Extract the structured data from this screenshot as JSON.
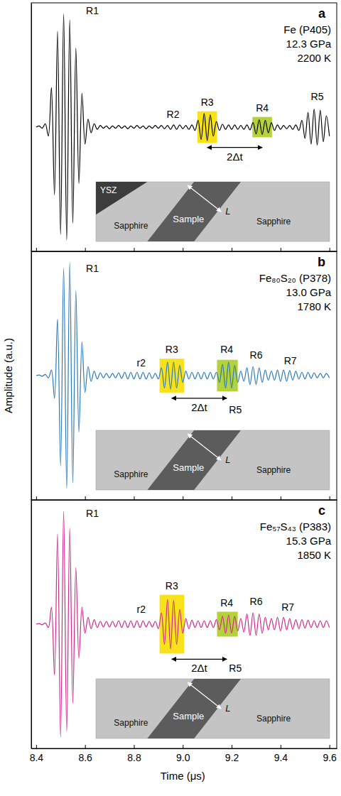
{
  "chart_data": [
    {
      "type": "line",
      "label": "a",
      "title": "Fe (P405)",
      "pressure": "12.3 GPa",
      "temperature": "2200 K",
      "xlim": [
        8.38,
        9.63
      ],
      "ylim": [
        -1.1,
        1.1
      ],
      "xticks": [
        8.4,
        8.6,
        8.8,
        {
          "value": 9,
          "label": "9.0"
        },
        9.2,
        9.4,
        9.6
      ],
      "tick_labels": false,
      "x": [
        8.4,
        8.4125,
        8.425,
        8.4375,
        8.45,
        8.4625,
        8.475,
        8.4875,
        8.5,
        8.5125,
        8.525,
        8.5375,
        8.55,
        8.5625,
        8.575,
        8.5875,
        8.6,
        8.6125,
        8.625,
        8.6375,
        8.65,
        8.6625,
        8.675,
        8.6875,
        8.7,
        8.7125,
        8.725,
        8.7375,
        8.75,
        8.7625,
        8.775,
        8.7875,
        8.8,
        8.8125,
        8.825,
        8.8375,
        8.85,
        8.8625,
        8.875,
        8.8875,
        8.9,
        8.9125,
        8.925,
        8.9375,
        8.95,
        8.9625,
        8.975,
        8.9875,
        9.0,
        9.0125,
        9.025,
        9.0375,
        9.05,
        9.0625,
        9.075,
        9.0875,
        9.1,
        9.1125,
        9.125,
        9.1375,
        9.15,
        9.1625,
        9.175,
        9.1875,
        9.2,
        9.2125,
        9.225,
        9.2375,
        9.25,
        9.2625,
        9.275,
        9.2875,
        9.3,
        9.3125,
        9.325,
        9.3375,
        9.35,
        9.3625,
        9.375,
        9.3875,
        9.4,
        9.4125,
        9.425,
        9.4375,
        9.45,
        9.4625,
        9.475,
        9.4875,
        9.5,
        9.5125,
        9.525,
        9.5375,
        9.55,
        9.5625,
        9.575,
        9.5875,
        9.6
      ],
      "series": [
        {
          "color": "#000000",
          "values": [
            0,
            0.01,
            -0.01,
            0.03,
            -0.08,
            0.35,
            -0.6,
            0.85,
            -0.95,
            1.0,
            -1.0,
            0.95,
            -0.85,
            0.7,
            -0.5,
            0.3,
            -0.15,
            0.07,
            -0.05,
            0.03,
            -0.02,
            0.015,
            -0.01,
            0.01,
            -0.015,
            0.01,
            -0.01,
            0.015,
            -0.01,
            0.01,
            -0.015,
            0.01,
            -0.01,
            0.015,
            -0.01,
            0.01,
            -0.015,
            0.01,
            -0.01,
            0.015,
            -0.01,
            0.015,
            -0.015,
            0.015,
            -0.02,
            0.02,
            -0.02,
            0.02,
            -0.015,
            0.015,
            -0.02,
            0.02,
            -0.03,
            0.06,
            -0.11,
            0.12,
            -0.12,
            0.11,
            -0.08,
            0.05,
            -0.03,
            0.025,
            -0.02,
            0.02,
            -0.02,
            0.02,
            -0.02,
            0.015,
            -0.02,
            0.02,
            -0.025,
            0.04,
            -0.06,
            0.065,
            -0.065,
            0.06,
            -0.05,
            0.04,
            -0.03,
            0.02,
            -0.02,
            0.015,
            -0.015,
            0.015,
            -0.02,
            0.02,
            -0.03,
            0.06,
            -0.1,
            0.13,
            -0.15,
            0.16,
            -0.16,
            0.15,
            -0.13,
            0.1,
            -0.08
          ]
        }
      ],
      "highlights": [
        {
          "x0": 9.06,
          "x1": 9.14,
          "y0": -0.14,
          "y1": 0.14,
          "color": "#f7e21b"
        },
        {
          "x0": 9.285,
          "x1": 9.365,
          "y0": -0.09,
          "y1": 0.09,
          "color": "#b4d23a"
        }
      ],
      "annotations": [
        {
          "text": "R1",
          "x": 8.63,
          "y": 1.0
        },
        {
          "text": "R2",
          "x": 8.96,
          "y": 0.08
        },
        {
          "text": "R3",
          "x": 9.1,
          "y": 0.19
        },
        {
          "text": "R4",
          "x": 9.325,
          "y": 0.14
        },
        {
          "text": "R5",
          "x": 9.55,
          "y": 0.24
        }
      ],
      "arrow": {
        "text": "2Δt",
        "x0": 9.1,
        "x1": 9.325,
        "y": -0.18
      },
      "inset": {
        "top_left": "YSZ",
        "left": "Sapphire",
        "sample": "Sample",
        "right": "Sapphire",
        "thickness": "L"
      }
    },
    {
      "type": "line",
      "label": "b",
      "title": "Fe₈₀S₂₀ (P378)",
      "pressure": "13.0 GPa",
      "temperature": "1780 K",
      "ylabel": "Amplitude (a.u.)",
      "xlim": [
        8.38,
        9.63
      ],
      "ylim": [
        -1.1,
        1.1
      ],
      "xticks": [
        8.4,
        8.6,
        8.8,
        {
          "value": 9,
          "label": "9.0"
        },
        9.2,
        9.4,
        9.6
      ],
      "tick_labels": false,
      "x": [
        8.4,
        8.4125,
        8.425,
        8.4375,
        8.45,
        8.4625,
        8.475,
        8.4875,
        8.5,
        8.5125,
        8.525,
        8.5375,
        8.55,
        8.5625,
        8.575,
        8.5875,
        8.6,
        8.6125,
        8.625,
        8.6375,
        8.65,
        8.6625,
        8.675,
        8.6875,
        8.7,
        8.7125,
        8.725,
        8.7375,
        8.75,
        8.7625,
        8.775,
        8.7875,
        8.8,
        8.8125,
        8.825,
        8.8375,
        8.85,
        8.8625,
        8.875,
        8.8875,
        8.9,
        8.9125,
        8.925,
        8.9375,
        8.95,
        8.9625,
        8.975,
        8.9875,
        9.0,
        9.0125,
        9.025,
        9.0375,
        9.05,
        9.0625,
        9.075,
        9.0875,
        9.1,
        9.1125,
        9.125,
        9.1375,
        9.15,
        9.1625,
        9.175,
        9.1875,
        9.2,
        9.2125,
        9.225,
        9.2375,
        9.25,
        9.2625,
        9.275,
        9.2875,
        9.3,
        9.3125,
        9.325,
        9.3375,
        9.35,
        9.3625,
        9.375,
        9.3875,
        9.4,
        9.4125,
        9.425,
        9.4375,
        9.45,
        9.4625,
        9.475,
        9.4875,
        9.5,
        9.5125,
        9.525,
        9.5375,
        9.55,
        9.5625,
        9.575,
        9.5875,
        9.6
      ],
      "series": [
        {
          "color": "#2a78b8",
          "values": [
            0,
            0.005,
            -0.005,
            0.01,
            -0.02,
            0.05,
            -0.2,
            0.5,
            -0.8,
            0.95,
            -1.0,
            1.0,
            -0.95,
            0.75,
            -0.5,
            0.3,
            -0.15,
            0.08,
            -0.05,
            0.04,
            -0.03,
            0.025,
            -0.02,
            0.02,
            -0.02,
            0.02,
            -0.02,
            0.025,
            -0.025,
            0.03,
            -0.03,
            0.03,
            -0.03,
            0.03,
            -0.03,
            0.03,
            -0.03,
            0.025,
            -0.025,
            0.02,
            -0.03,
            0.07,
            -0.11,
            0.12,
            -0.12,
            0.12,
            -0.11,
            0.09,
            -0.06,
            0.04,
            -0.03,
            0.03,
            -0.03,
            0.03,
            -0.03,
            0.03,
            -0.03,
            0.03,
            -0.03,
            0.03,
            -0.06,
            0.1,
            -0.11,
            0.12,
            -0.11,
            0.09,
            -0.06,
            0.04,
            -0.05,
            0.07,
            -0.08,
            0.08,
            -0.08,
            0.07,
            -0.06,
            0.05,
            -0.04,
            0.04,
            -0.04,
            0.05,
            -0.05,
            0.05,
            -0.05,
            0.045,
            -0.04,
            0.04,
            -0.03,
            0.03,
            -0.03,
            0.03,
            -0.025,
            0.025,
            -0.02,
            0.02,
            -0.02,
            0.02,
            -0.02
          ]
        }
      ],
      "highlights": [
        {
          "x0": 8.905,
          "x1": 9.005,
          "y0": -0.15,
          "y1": 0.15,
          "color": "#f7e21b"
        },
        {
          "x0": 9.14,
          "x1": 9.225,
          "y0": -0.14,
          "y1": 0.14,
          "color": "#b4d23a"
        }
      ],
      "annotations": [
        {
          "text": "R1",
          "x": 8.63,
          "y": 0.92
        },
        {
          "text": "r2",
          "x": 8.83,
          "y": 0.08
        },
        {
          "text": "R3",
          "x": 8.955,
          "y": 0.2
        },
        {
          "text": "R4",
          "x": 9.18,
          "y": 0.2
        },
        {
          "text": "R5",
          "x": 9.215,
          "y": -0.33
        },
        {
          "text": "R6",
          "x": 9.3,
          "y": 0.15
        },
        {
          "text": "R7",
          "x": 9.44,
          "y": 0.1
        }
      ],
      "arrow": {
        "text": "2Δt",
        "x0": 8.955,
        "x1": 9.18,
        "y": -0.2
      },
      "inset": {
        "left": "Sapphire",
        "sample": "Sample",
        "right": "Sapphire",
        "thickness": "L"
      }
    },
    {
      "type": "line",
      "label": "c",
      "title": "Fe₅₇S₄₃ (P383)",
      "pressure": "15.3 GPa",
      "temperature": "1850 K",
      "xlabel": "Time (μs)",
      "xlim": [
        8.38,
        9.63
      ],
      "ylim": [
        -1.1,
        1.1
      ],
      "xticks": [
        8.4,
        8.6,
        8.8,
        {
          "value": 9,
          "label": "9.0"
        },
        9.2,
        9.4,
        9.6
      ],
      "tick_labels": "x",
      "x": [
        8.4,
        8.4125,
        8.425,
        8.4375,
        8.45,
        8.4625,
        8.475,
        8.4875,
        8.5,
        8.5125,
        8.525,
        8.5375,
        8.55,
        8.5625,
        8.575,
        8.5875,
        8.6,
        8.6125,
        8.625,
        8.6375,
        8.65,
        8.6625,
        8.675,
        8.6875,
        8.7,
        8.7125,
        8.725,
        8.7375,
        8.75,
        8.7625,
        8.775,
        8.7875,
        8.8,
        8.8125,
        8.825,
        8.8375,
        8.85,
        8.8625,
        8.875,
        8.8875,
        8.9,
        8.9125,
        8.925,
        8.9375,
        8.95,
        8.9625,
        8.975,
        8.9875,
        9.0,
        9.0125,
        9.025,
        9.0375,
        9.05,
        9.0625,
        9.075,
        9.0875,
        9.1,
        9.1125,
        9.125,
        9.1375,
        9.15,
        9.1625,
        9.175,
        9.1875,
        9.2,
        9.2125,
        9.225,
        9.2375,
        9.25,
        9.2625,
        9.275,
        9.2875,
        9.3,
        9.3125,
        9.325,
        9.3375,
        9.35,
        9.3625,
        9.375,
        9.3875,
        9.4,
        9.4125,
        9.425,
        9.4375,
        9.45,
        9.4625,
        9.475,
        9.4875,
        9.5,
        9.5125,
        9.525,
        9.5375,
        9.55,
        9.5625,
        9.575,
        9.5875,
        9.6
      ],
      "series": [
        {
          "color": "#d1288c",
          "values": [
            0,
            0.005,
            -0.005,
            0.01,
            -0.03,
            0.15,
            -0.45,
            0.8,
            -1.0,
            1.0,
            -0.95,
            0.85,
            -0.7,
            0.5,
            -0.3,
            0.15,
            -0.08,
            0.06,
            -0.04,
            0.04,
            -0.03,
            0.025,
            -0.025,
            0.025,
            -0.025,
            0.025,
            -0.025,
            0.03,
            -0.03,
            0.03,
            -0.03,
            0.03,
            -0.03,
            0.03,
            -0.03,
            0.03,
            -0.025,
            0.025,
            -0.025,
            0.025,
            -0.04,
            0.1,
            -0.18,
            0.22,
            -0.22,
            0.21,
            -0.18,
            0.13,
            -0.08,
            0.05,
            -0.04,
            0.035,
            -0.03,
            0.03,
            -0.03,
            0.03,
            -0.03,
            0.03,
            -0.03,
            0.04,
            -0.05,
            0.07,
            -0.08,
            0.08,
            -0.08,
            0.07,
            -0.06,
            0.05,
            -0.07,
            0.09,
            -0.1,
            0.1,
            -0.1,
            0.09,
            -0.08,
            0.06,
            -0.05,
            0.05,
            -0.05,
            0.06,
            -0.06,
            0.06,
            -0.05,
            0.05,
            -0.045,
            0.04,
            -0.04,
            0.04,
            -0.035,
            0.035,
            -0.03,
            0.03,
            -0.03,
            0.03,
            -0.03,
            0.03,
            -0.03
          ]
        }
      ],
      "highlights": [
        {
          "x0": 8.905,
          "x1": 9.005,
          "y0": -0.26,
          "y1": 0.26,
          "color": "#f7e21b"
        },
        {
          "x0": 9.14,
          "x1": 9.225,
          "y0": -0.11,
          "y1": 0.11,
          "color": "#b4d23a"
        }
      ],
      "annotations": [
        {
          "text": "R1",
          "x": 8.63,
          "y": 0.95
        },
        {
          "text": "r2",
          "x": 8.83,
          "y": 0.1
        },
        {
          "text": "R3",
          "x": 8.955,
          "y": 0.31
        },
        {
          "text": "R4",
          "x": 9.18,
          "y": 0.16
        },
        {
          "text": "R5",
          "x": 9.215,
          "y": -0.42
        },
        {
          "text": "R6",
          "x": 9.3,
          "y": 0.17
        },
        {
          "text": "R7",
          "x": 9.43,
          "y": 0.12
        }
      ],
      "arrow": {
        "text": "2Δt",
        "x0": 8.955,
        "x1": 9.18,
        "y": -0.31
      },
      "inset": {
        "left": "Sapphire",
        "sample": "Sample",
        "right": "Sapphire",
        "thickness": "L"
      }
    }
  ]
}
